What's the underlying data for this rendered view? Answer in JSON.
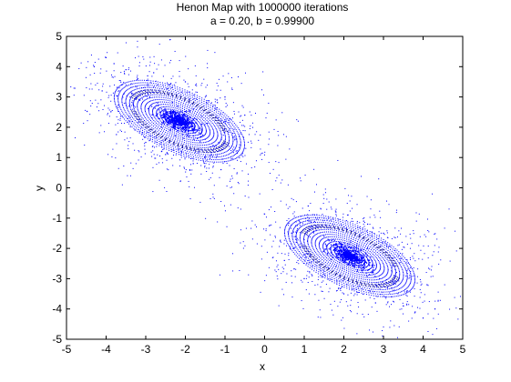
{
  "chart_data": {
    "type": "scatter",
    "title": "Henon Map with 1000000 iterations",
    "subtitle": "a = 0.20, b = 0.99900",
    "xlabel": "x",
    "ylabel": "y",
    "xlim": [
      -5,
      5
    ],
    "ylim": [
      -5,
      5
    ],
    "xticks": [
      -5,
      -4,
      -3,
      -2,
      -1,
      0,
      1,
      2,
      3,
      4,
      5
    ],
    "yticks": [
      -5,
      -4,
      -3,
      -2,
      -1,
      0,
      1,
      2,
      3,
      4,
      5
    ],
    "grid": false,
    "legend": "none",
    "series": [
      {
        "color": "#0000ff",
        "marker": "point",
        "attractor_centers": [
          [
            -2.15,
            2.2
          ],
          [
            2.15,
            -2.25
          ]
        ],
        "x": [
          -2.3,
          -2.2,
          -2.1,
          -2.0,
          -2.4,
          -2.25,
          -2.05,
          -2.35,
          -1.95,
          -2.5,
          -2.2,
          -2.1,
          -2.6,
          -1.8,
          -2.7,
          -1.6,
          -2.9,
          -1.5,
          -3.1,
          -1.3,
          -3.2,
          -1.2,
          -3.5,
          -1.0,
          -3.8,
          -0.8,
          -4.0,
          -4.3,
          -3.6,
          -2.8,
          -2.0,
          -1.0,
          -0.5,
          -3.0,
          -2.5,
          -1.5,
          -4.1,
          -3.3,
          -2.6,
          -1.8,
          -1.1,
          2.3,
          2.2,
          2.1,
          2.0,
          2.4,
          2.25,
          2.05,
          2.35,
          1.95,
          2.5,
          2.2,
          2.1,
          2.6,
          1.8,
          2.7,
          1.6,
          2.9,
          1.5,
          3.1,
          1.3,
          3.2,
          1.2,
          3.5,
          1.0,
          3.8,
          0.8,
          4.0,
          4.3,
          3.6,
          2.8,
          2.0,
          1.0,
          0.5,
          3.0,
          2.5,
          1.5,
          4.1,
          3.3,
          2.6,
          1.8,
          1.1
        ],
        "y": [
          2.1,
          2.25,
          2.15,
          2.05,
          2.3,
          2.0,
          2.35,
          2.2,
          2.1,
          2.4,
          2.5,
          1.9,
          2.0,
          2.6,
          2.8,
          1.7,
          3.0,
          1.6,
          3.3,
          1.4,
          3.6,
          2.9,
          3.9,
          2.2,
          4.1,
          1.8,
          4.3,
          4.0,
          3.4,
          3.8,
          3.5,
          3.0,
          2.4,
          1.5,
          1.1,
          1.0,
          3.2,
          2.7,
          1.2,
          0.8,
          0.6,
          -2.1,
          -2.25,
          -2.15,
          -2.05,
          -2.3,
          -2.0,
          -2.35,
          -2.2,
          -2.1,
          -2.4,
          -2.5,
          -1.9,
          -2.0,
          -2.6,
          -2.8,
          -1.7,
          -3.0,
          -1.6,
          -3.3,
          -1.4,
          -3.6,
          -2.9,
          -3.9,
          -2.2,
          -4.1,
          -1.8,
          -4.3,
          -4.0,
          -3.4,
          -3.8,
          -3.5,
          -3.0,
          -2.4,
          -1.5,
          -1.1,
          -1.0,
          -3.2,
          -2.7,
          -1.2,
          -0.8,
          -0.6
        ]
      }
    ]
  }
}
